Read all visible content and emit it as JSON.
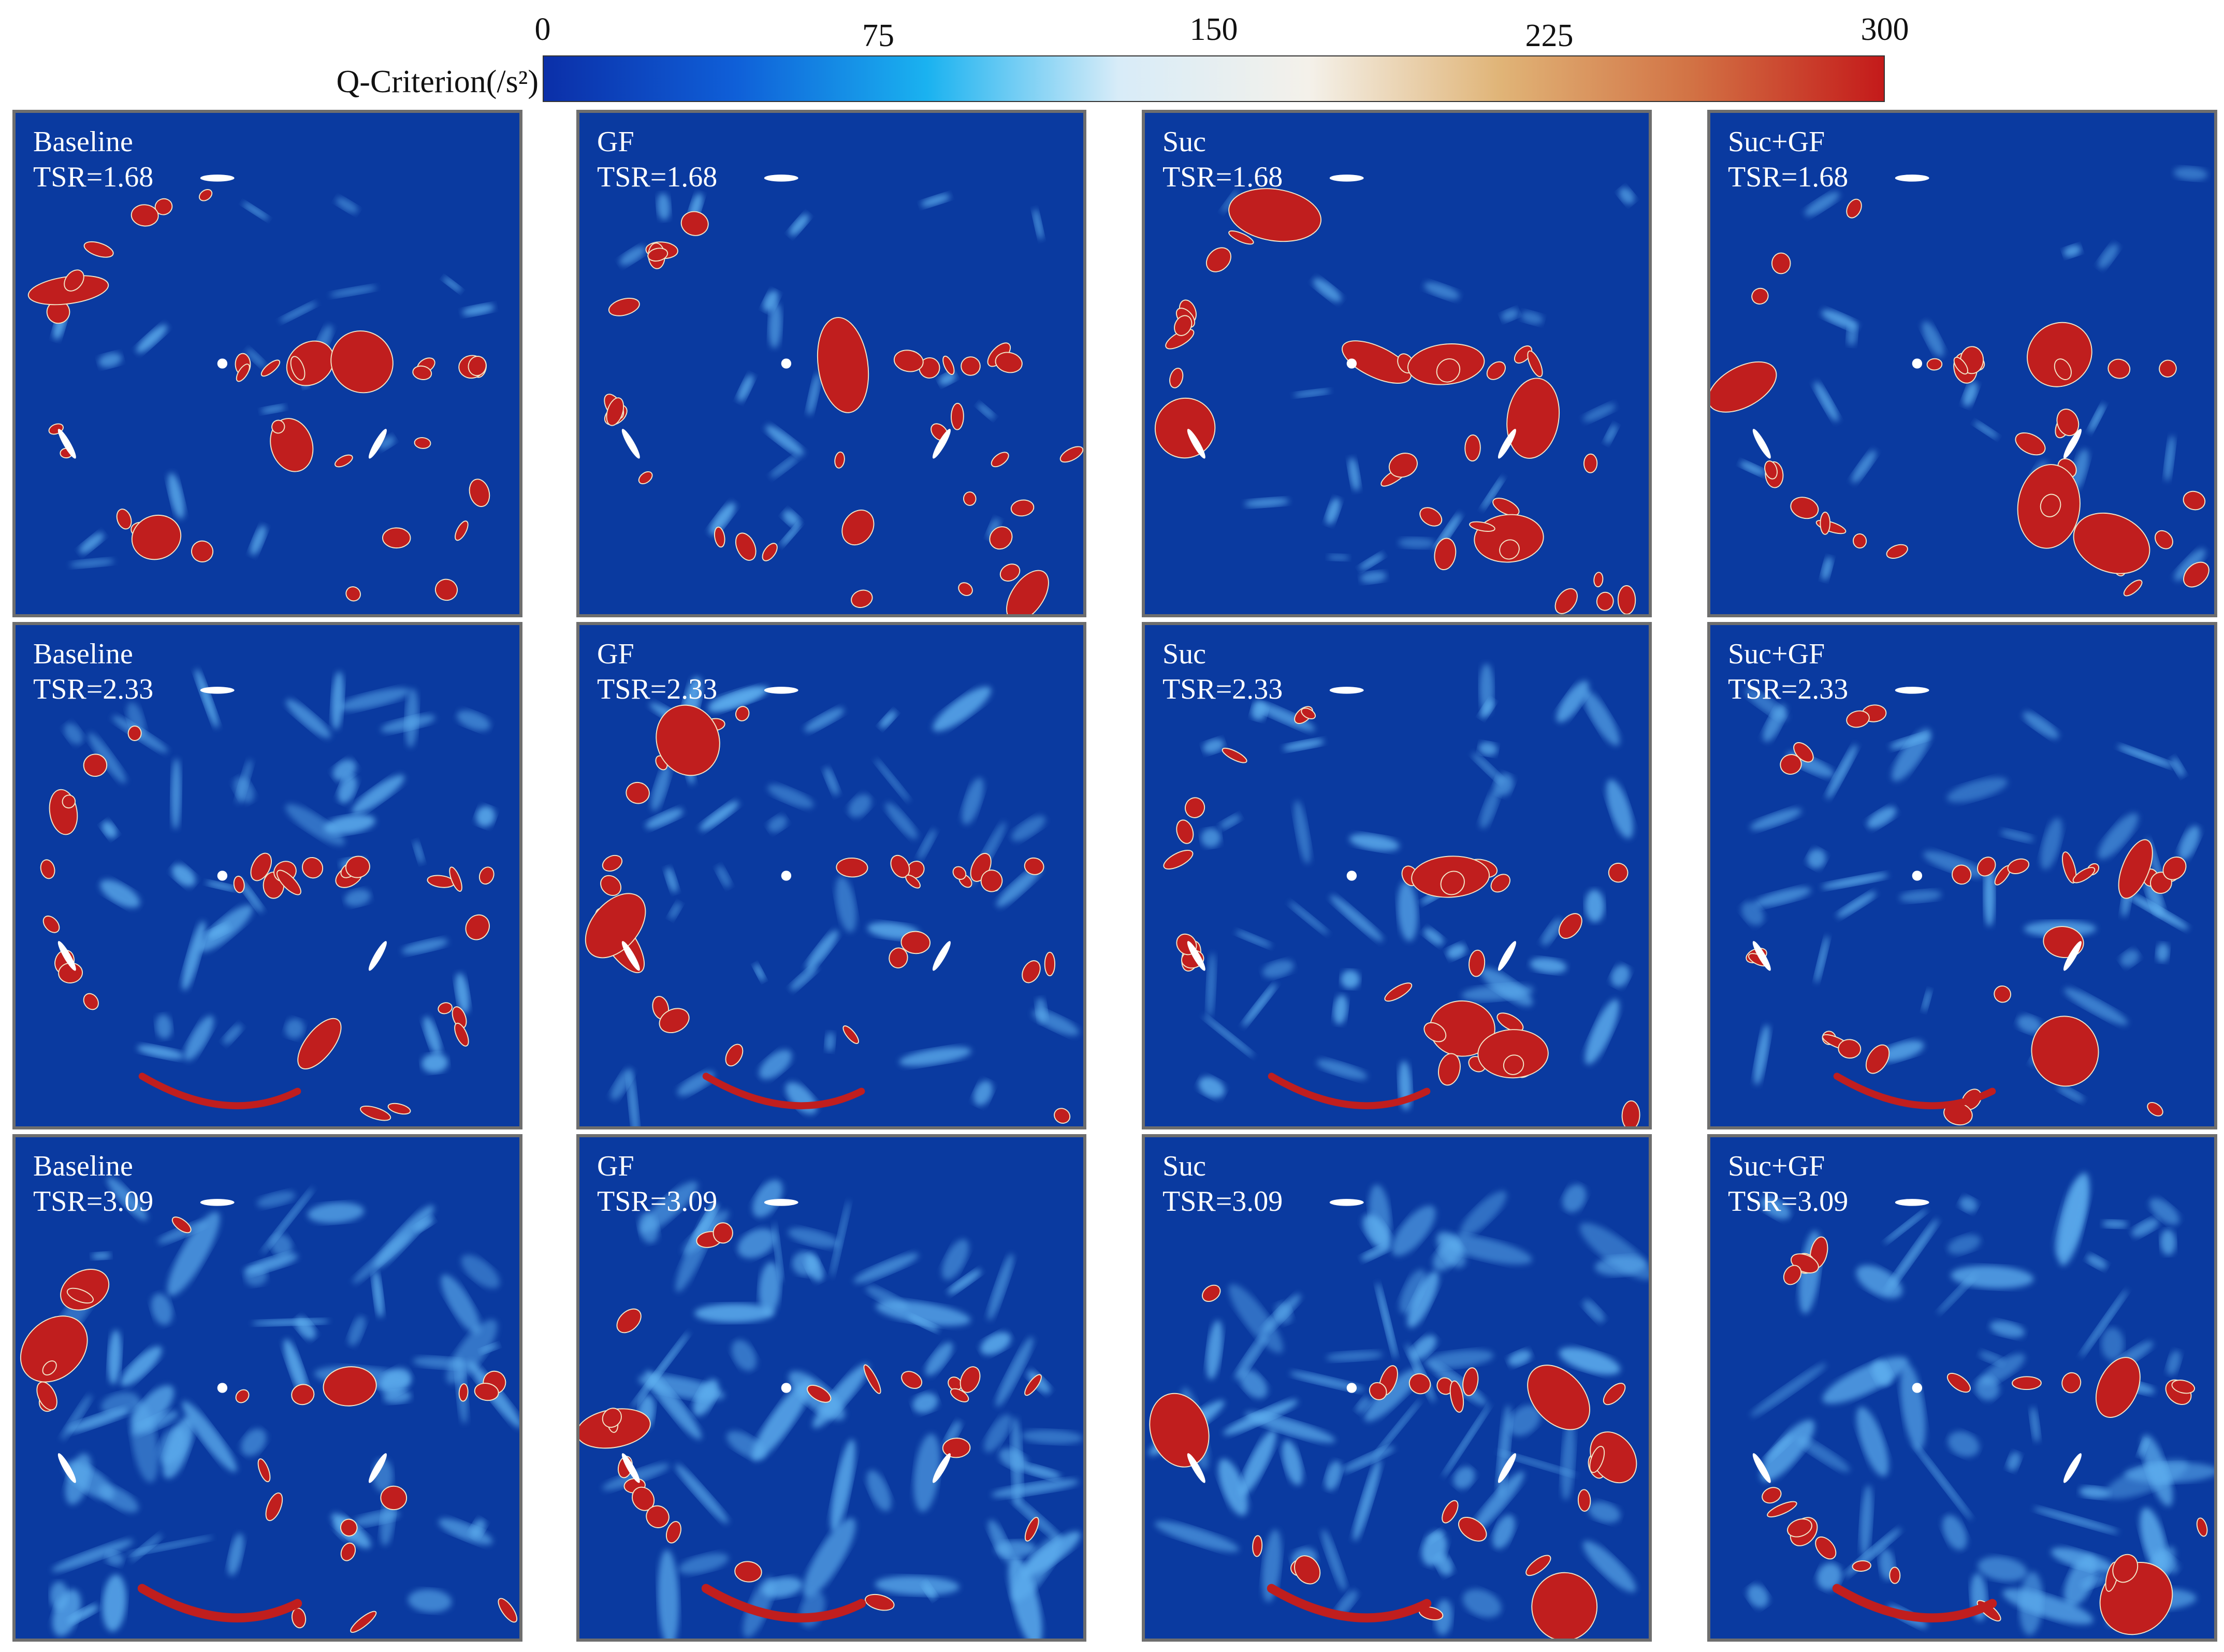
{
  "colorbar": {
    "label": "Q-Criterion(/s²)",
    "ticks": [
      "0",
      "75",
      "150",
      "225",
      "300"
    ],
    "stops": [
      "#0b2fa8",
      "#0f5fd8",
      "#1ab2f0",
      "#d8ecf8",
      "#f4f1ea",
      "#e0b477",
      "#d27244",
      "#c41a1a"
    ],
    "range": [
      0,
      300
    ]
  },
  "colors": {
    "background": "#0a3aa0",
    "strong_vortex": "#c01e1e",
    "weak_vortex": "#5fb0f0",
    "blade": "#ffffff"
  },
  "cases": [
    "Baseline",
    "GF",
    "Suc",
    "Suc+GF"
  ],
  "tsr": [
    "TSR=1.68",
    "TSR=2.33",
    "TSR=3.09"
  ],
  "panels": [
    {
      "case": "Baseline",
      "tsr": "TSR=1.68",
      "level": 0
    },
    {
      "case": "GF",
      "tsr": "TSR=1.68",
      "level": 0
    },
    {
      "case": "Suc",
      "tsr": "TSR=1.68",
      "level": 0
    },
    {
      "case": "Suc+GF",
      "tsr": "TSR=1.68",
      "level": 0
    },
    {
      "case": "Baseline",
      "tsr": "TSR=2.33",
      "level": 1
    },
    {
      "case": "GF",
      "tsr": "TSR=2.33",
      "level": 1
    },
    {
      "case": "Suc",
      "tsr": "TSR=2.33",
      "level": 1
    },
    {
      "case": "Suc+GF",
      "tsr": "TSR=2.33",
      "level": 1
    },
    {
      "case": "Baseline",
      "tsr": "TSR=3.09",
      "level": 2
    },
    {
      "case": "GF",
      "tsr": "TSR=3.09",
      "level": 2
    },
    {
      "case": "Suc",
      "tsr": "TSR=3.09",
      "level": 2
    },
    {
      "case": "Suc+GF",
      "tsr": "TSR=3.09",
      "level": 2
    }
  ]
}
